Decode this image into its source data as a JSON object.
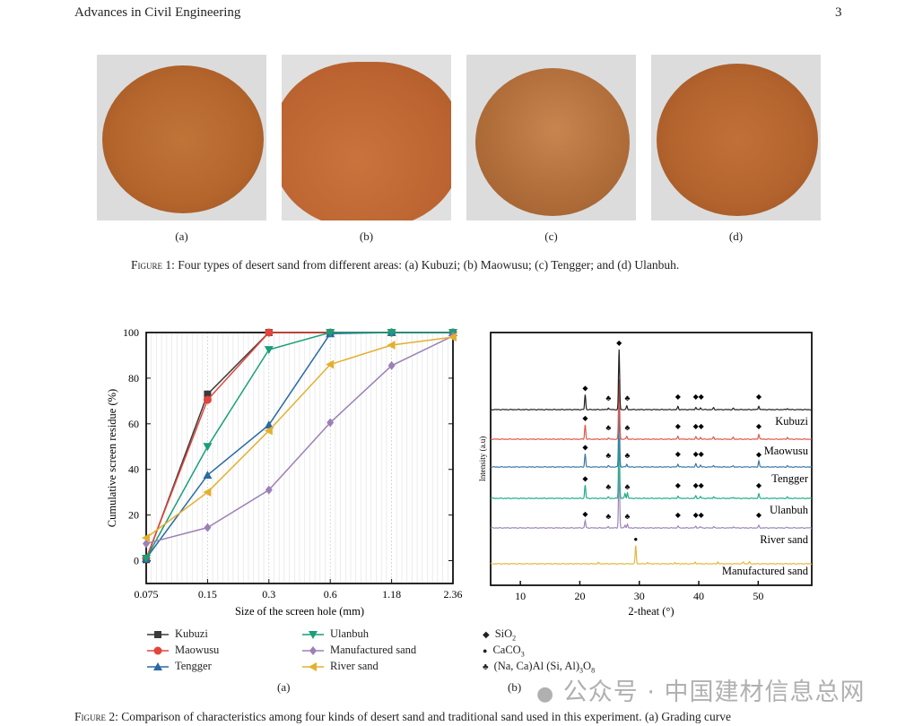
{
  "header": {
    "journal": "Advances in Civil Engineering",
    "page_number": "3"
  },
  "figure1": {
    "panels": [
      {
        "label": "(a)",
        "name": "Kubuzi",
        "sand_color": "#b8692e"
      },
      {
        "label": "(b)",
        "name": "Maowusu",
        "sand_color": "#c06a34"
      },
      {
        "label": "(c)",
        "name": "Tengger",
        "sand_color": "#b5703a"
      },
      {
        "label": "(d)",
        "name": "Ulanbuh",
        "sand_color": "#b9672f"
      }
    ],
    "caption_prefix": "Figure 1:",
    "caption": "Four types of desert sand from different areas: (a) Kubuzi; (b) Maowusu; (c) Tengger; and (d) Ulanbuh."
  },
  "chart_data": [
    {
      "type": "line",
      "panel_label": "(a)",
      "xlabel": "Size of the screen hole (mm)",
      "ylabel": "Cumulative screen residue (%)",
      "categories": [
        "0.075",
        "0.15",
        "0.3",
        "0.6",
        "1.18",
        "2.36"
      ],
      "ylim": [
        -10,
        100
      ],
      "yticks": [
        0,
        20,
        40,
        60,
        80,
        100
      ],
      "grid": "vertical minor lines",
      "legend_position": "below",
      "series": [
        {
          "name": "Kubuzi",
          "color": "#3a3a3a",
          "marker": "square",
          "values": [
            0.5,
            73,
            100,
            100,
            100,
            100
          ]
        },
        {
          "name": "Maowusu",
          "color": "#e2453b",
          "marker": "circle",
          "values": [
            1,
            70.5,
            100,
            100,
            100,
            100
          ]
        },
        {
          "name": "Tengger",
          "color": "#2a6aa3",
          "marker": "triangle-up",
          "values": [
            1,
            37.5,
            59.5,
            99.5,
            100,
            100
          ]
        },
        {
          "name": "Ulanbuh",
          "color": "#1a9f78",
          "marker": "triangle-down",
          "values": [
            1,
            50,
            92.5,
            100,
            100,
            100
          ]
        },
        {
          "name": "Manufactured sand",
          "color": "#9c80b6",
          "marker": "diamond",
          "values": [
            7.5,
            14.5,
            31,
            60.5,
            85.5,
            98.5
          ]
        },
        {
          "name": "River sand",
          "color": "#e3b02e",
          "marker": "triangle-left",
          "values": [
            10,
            30,
            57,
            86,
            94.5,
            98
          ]
        }
      ]
    },
    {
      "type": "line",
      "panel_label": "(b)",
      "xlabel": "2-theat (°)",
      "ylabel": "Intensity (a.u)",
      "xlim": [
        5,
        59
      ],
      "xticks": [
        10,
        20,
        30,
        40,
        50
      ],
      "legend_position": "below",
      "phases": [
        {
          "symbol": "◆",
          "label": "SiO",
          "sub": "2"
        },
        {
          "symbol": "●",
          "label": "CaCO",
          "sub": "3"
        },
        {
          "symbol": "♣",
          "label": "(Na, Ca)Al (Si, Al)",
          "sub": "3",
          "label2": "O",
          "sub2": "8"
        }
      ],
      "series": [
        {
          "name": "Kubuzi",
          "color": "#222222",
          "peaks": [
            [
              20.9,
              25
            ],
            [
              24.8,
              3
            ],
            [
              26.6,
              100
            ],
            [
              27.9,
              6
            ],
            [
              36.5,
              5
            ],
            [
              39.5,
              4
            ],
            [
              40.3,
              3
            ],
            [
              42.5,
              3
            ],
            [
              45.8,
              2
            ],
            [
              50.1,
              6
            ],
            [
              54.9,
              2
            ]
          ],
          "markers": [
            [
              "◆",
              20.9
            ],
            [
              "♣",
              24.8
            ],
            [
              "◆",
              26.6
            ],
            [
              "♣",
              28.0
            ],
            [
              "◆",
              36.5
            ],
            [
              "◆",
              39.5
            ],
            [
              "◆",
              40.4
            ],
            [
              "◆",
              50.1
            ]
          ]
        },
        {
          "name": "Maowusu",
          "color": "#e0574c",
          "peaks": [
            [
              20.9,
              24
            ],
            [
              24.8,
              2
            ],
            [
              26.6,
              100
            ],
            [
              27.9,
              5
            ],
            [
              36.5,
              5
            ],
            [
              39.5,
              4
            ],
            [
              40.3,
              3
            ],
            [
              42.5,
              4
            ],
            [
              45.8,
              3
            ],
            [
              50.1,
              8
            ],
            [
              54.9,
              3
            ]
          ],
          "markers": [
            [
              "◆",
              20.9
            ],
            [
              "♣",
              24.8
            ],
            [
              "♣",
              28.0
            ],
            [
              "◆",
              36.5
            ],
            [
              "◆",
              39.5
            ],
            [
              "◆",
              40.4
            ],
            [
              "◆",
              50.1
            ]
          ]
        },
        {
          "name": "Tengger",
          "color": "#3a78a8",
          "peaks": [
            [
              20.9,
              22
            ],
            [
              24.8,
              2
            ],
            [
              26.6,
              100
            ],
            [
              27.9,
              5
            ],
            [
              36.5,
              5
            ],
            [
              39.5,
              5
            ],
            [
              40.3,
              3
            ],
            [
              42.5,
              3
            ],
            [
              45.8,
              2
            ],
            [
              50.1,
              10
            ],
            [
              54.9,
              2
            ]
          ],
          "markers": [
            [
              "◆",
              20.9
            ],
            [
              "♣",
              24.8
            ],
            [
              "♣",
              28.0
            ],
            [
              "◆",
              36.5
            ],
            [
              "◆",
              39.5
            ],
            [
              "◆",
              40.4
            ],
            [
              "◆",
              50.1
            ]
          ]
        },
        {
          "name": "Ulanbuh",
          "color": "#1fae86",
          "peaks": [
            [
              20.9,
              22
            ],
            [
              24.8,
              2
            ],
            [
              26.6,
              100
            ],
            [
              27.6,
              8
            ],
            [
              28.0,
              9
            ],
            [
              36.5,
              4
            ],
            [
              39.5,
              4
            ],
            [
              40.3,
              3
            ],
            [
              42.5,
              3
            ],
            [
              45.8,
              2
            ],
            [
              50.1,
              7
            ],
            [
              54.9,
              2
            ]
          ],
          "markers": [
            [
              "◆",
              20.9
            ],
            [
              "♣",
              24.8
            ],
            [
              "♣",
              28.0
            ],
            [
              "◆",
              36.5
            ],
            [
              "◆",
              39.5
            ],
            [
              "◆",
              40.4
            ],
            [
              "◆",
              50.1
            ]
          ]
        },
        {
          "name": "River sand",
          "color": "#9d86b8",
          "peaks": [
            [
              20.9,
              12
            ],
            [
              24.8,
              2
            ],
            [
              26.6,
              100
            ],
            [
              27.6,
              5
            ],
            [
              28.0,
              6
            ],
            [
              36.5,
              3
            ],
            [
              39.5,
              3
            ],
            [
              40.3,
              2
            ],
            [
              42.5,
              2
            ],
            [
              45.8,
              2
            ],
            [
              50.1,
              4
            ],
            [
              54.9,
              1
            ]
          ],
          "markers": [
            [
              "◆",
              20.9
            ],
            [
              "♣",
              24.8
            ],
            [
              "♣",
              28.0
            ],
            [
              "◆",
              36.5
            ],
            [
              "◆",
              39.5
            ],
            [
              "◆",
              40.4
            ],
            [
              "◆",
              50.1
            ]
          ]
        },
        {
          "name": "Manufactured sand",
          "color": "#e2b83a",
          "peaks": [
            [
              23.1,
              2
            ],
            [
              29.4,
              30
            ],
            [
              31.4,
              2
            ],
            [
              36.0,
              2
            ],
            [
              39.4,
              3
            ],
            [
              43.2,
              3
            ],
            [
              47.5,
              3
            ],
            [
              48.5,
              3
            ]
          ],
          "markers": [
            [
              "●",
              29.4
            ]
          ]
        }
      ]
    }
  ],
  "figure2": {
    "panel_a_label": "(a)",
    "panel_b_label": "(b)",
    "caption_prefix": "Figure 2:",
    "caption": "Comparison of characteristics among four kinds of desert sand and traditional sand used in this experiment. (a) Grading curve"
  },
  "watermark": "公众号 · 中国建材信息总网"
}
